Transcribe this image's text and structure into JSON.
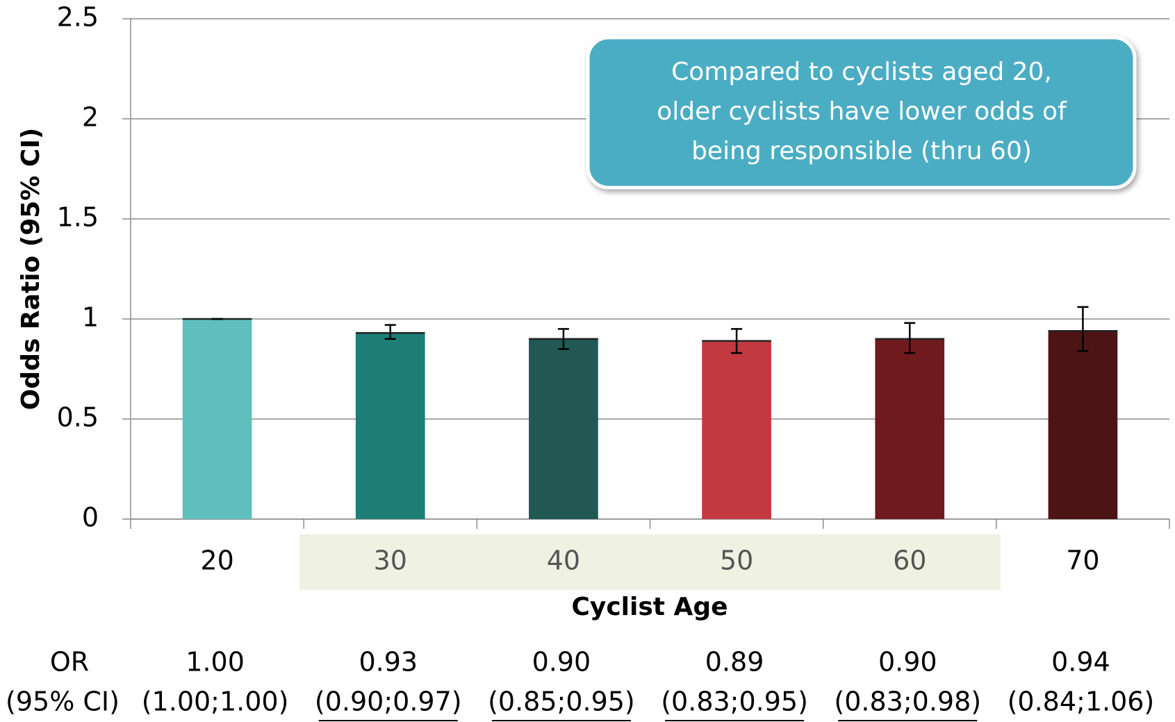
{
  "chart_data": {
    "type": "bar",
    "xlabel": "Cyclist Age",
    "ylabel": "Odds Ratio (95% CI)",
    "annotation": "Compared to cyclists aged 20, older cyclists have lower odds of being responsible (thru 60)",
    "categories": [
      "20",
      "30",
      "40",
      "50",
      "60",
      "70"
    ],
    "values": [
      1.0,
      0.93,
      0.9,
      0.89,
      0.9,
      0.94
    ],
    "value_labels": [
      "1.00",
      "0.93",
      "0.90",
      "0.89",
      "0.90",
      "0.94"
    ],
    "ci_low": [
      1.0,
      0.9,
      0.85,
      0.83,
      0.83,
      0.84
    ],
    "ci_high": [
      1.0,
      0.97,
      0.95,
      0.95,
      0.98,
      1.06
    ],
    "ci_labels": [
      "(1.00;1.00)",
      "(0.90;0.97)",
      "(0.85;0.95)",
      "(0.83;0.95)",
      "(0.83;0.98)",
      "(0.84;1.06)"
    ],
    "table_row_labels": [
      "OR",
      "(95% CI)"
    ],
    "colors": [
      "#60bfbc",
      "#1c7e77",
      "#215853",
      "#c33940",
      "#6f1b1e",
      "#4d1416"
    ],
    "ylim": [
      0,
      2.5
    ],
    "yticks": [
      0,
      0.5,
      1,
      1.5,
      2,
      2.5
    ],
    "grid": true
  }
}
